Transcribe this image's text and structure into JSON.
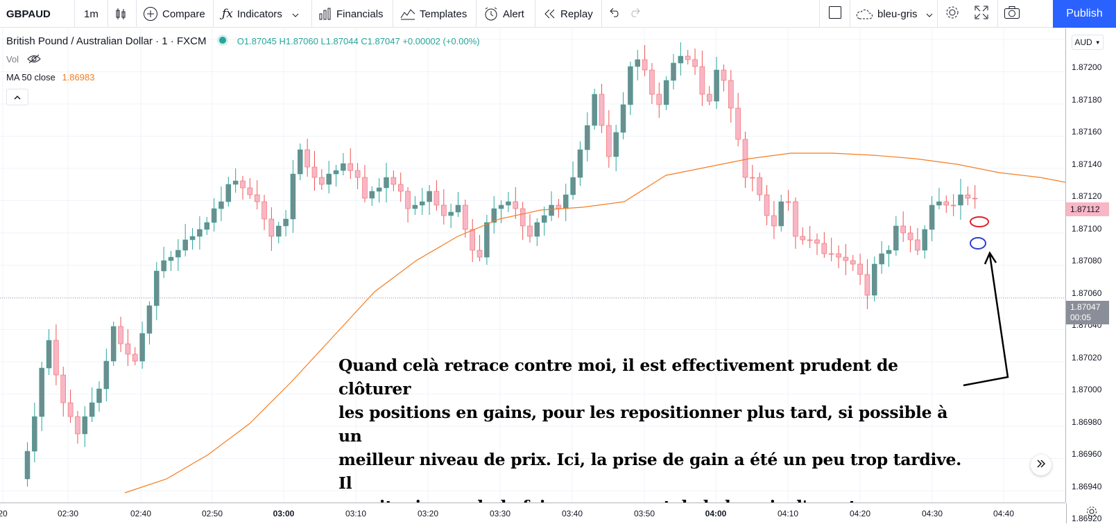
{
  "toolbar": {
    "symbol": "GBPAUD",
    "interval": "1m",
    "compare": "Compare",
    "indicators": "Indicators",
    "financials": "Financials",
    "templates": "Templates",
    "alert": "Alert",
    "replay": "Replay",
    "layout_name": "bleu-gris",
    "publish": "Publish"
  },
  "legend": {
    "title": "British Pound / Australian Dollar · 1 · FXCM",
    "ohlc": "O1.87045  H1.87060  L1.87044  C1.87047  +0.00002 (+0.00%)",
    "vol": "Vol",
    "ma_label": "MA 50 close",
    "ma_value": "1.86983"
  },
  "price_axis": {
    "currency": "AUD",
    "labels": [
      "1.87200",
      "1.87180",
      "1.87160",
      "1.87140",
      "1.87120",
      "1.87100",
      "1.87080",
      "1.87060",
      "1.87040",
      "1.87020",
      "1.87000",
      "1.86980",
      "1.86960",
      "1.86940",
      "1.86920"
    ],
    "last_price_tag": "1.87112",
    "current_price_tag": "1.87047",
    "countdown": "00:05"
  },
  "time_axis": {
    "labels": [
      "20",
      "02:30",
      "02:40",
      "02:50",
      "03:00",
      "03:10",
      "03:20",
      "03:30",
      "03:40",
      "03:50",
      "04:00",
      "04:10",
      "04:20",
      "04:30",
      "04:40"
    ]
  },
  "annotation": {
    "line1": "Quand celà retrace contre moi, il est effectivement prudent de clôturer",
    "line2": "les positions en gains, pour les repositionner plus tard, si possible à un",
    "line3": "meilleur niveau de prix. Ici, la prise de gain a été un peu trop tardive. Il",
    "line4": "aurait mieux valu la faire au moment de la bougie d'avant."
  },
  "colors": {
    "up_candle": "#6b8e8e",
    "down_candle": "#f8b6c6",
    "ma_line": "#f57c1f",
    "publish": "#2962ff",
    "legend_values": "#26a69a",
    "ma_value": "#f57c1f"
  }
}
